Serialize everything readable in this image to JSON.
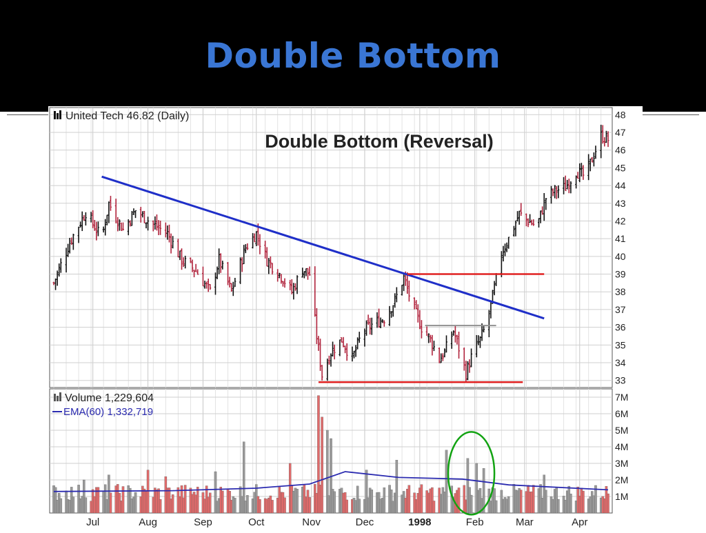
{
  "slide": {
    "title": "Double Bottom"
  },
  "colors": {
    "title": "#3a76d4",
    "up_candle": "#111111",
    "down_candle": "#b0233c",
    "trendline": "#1f2fc8",
    "support": "#e02020",
    "neckline": "#909090",
    "vol_up": "#9a9a9a",
    "vol_down": "#e06b6b",
    "ema": "#2b2bb0",
    "highlight": "#12a312"
  },
  "chart_data": [
    {
      "type": "candlestick",
      "header": "United Tech 46.82 (Daily)",
      "title": "Double Bottom (Reversal)",
      "ylim": [
        32.6,
        48.4
      ],
      "yticks": [
        "33",
        "34",
        "35",
        "36",
        "37",
        "38",
        "39",
        "40",
        "41",
        "42",
        "43",
        "44",
        "45",
        "46",
        "47",
        "48"
      ],
      "x_months": [
        {
          "label": "Jul",
          "x": "1997-07-01"
        },
        {
          "label": "Aug",
          "x": "1997-08-01"
        },
        {
          "label": "Sep",
          "x": "1997-09-01"
        },
        {
          "label": "Oct",
          "x": "1997-10-01"
        },
        {
          "label": "Nov",
          "x": "1997-11-01"
        },
        {
          "label": "Dec",
          "x": "1997-12-01"
        },
        {
          "label": "1998",
          "x": "1998-01-01"
        },
        {
          "label": "Feb",
          "x": "1998-02-01"
        },
        {
          "label": "Mar",
          "x": "1998-03-01"
        },
        {
          "label": "Apr",
          "x": "1998-04-01"
        }
      ],
      "xlim": [
        "1997-06-09",
        "1998-04-17"
      ],
      "price_path": [
        [
          "1997-06-09",
          38.5
        ],
        [
          "1997-06-18",
          40.8
        ],
        [
          "1997-06-27",
          42.5
        ],
        [
          "1997-07-06",
          41.0
        ],
        [
          "1997-07-10",
          43.0
        ],
        [
          "1997-07-18",
          41.5
        ],
        [
          "1997-07-25",
          42.6
        ],
        [
          "1997-08-04",
          41.8
        ],
        [
          "1997-08-12",
          41.3
        ],
        [
          "1997-08-20",
          39.8
        ],
        [
          "1997-08-28",
          39.2
        ],
        [
          "1997-09-05",
          38.0
        ],
        [
          "1997-09-10",
          39.8
        ],
        [
          "1997-09-17",
          38.0
        ],
        [
          "1997-09-25",
          40.5
        ],
        [
          "1997-10-01",
          41.3
        ],
        [
          "1997-10-07",
          39.8
        ],
        [
          "1997-10-15",
          38.9
        ],
        [
          "1997-10-21",
          38.0
        ],
        [
          "1997-10-27",
          39.3
        ],
        [
          "1997-10-31",
          39.0
        ],
        [
          "1997-11-04",
          35.5
        ],
        [
          "1997-11-07",
          33.3
        ],
        [
          "1997-11-12",
          34.6
        ],
        [
          "1997-11-18",
          35.3
        ],
        [
          "1997-11-24",
          34.2
        ],
        [
          "1997-11-30",
          35.8
        ],
        [
          "1997-12-06",
          36.2
        ],
        [
          "1997-12-12",
          36.5
        ],
        [
          "1997-12-18",
          37.5
        ],
        [
          "1997-12-23",
          38.8
        ],
        [
          "1997-12-28",
          37.2
        ],
        [
          "1998-01-02",
          36.0
        ],
        [
          "1998-01-07",
          35.3
        ],
        [
          "1998-01-12",
          34.2
        ],
        [
          "1998-01-15",
          34.6
        ],
        [
          "1998-01-20",
          35.8
        ],
        [
          "1998-01-24",
          34.5
        ],
        [
          "1998-01-27",
          33.4
        ],
        [
          "1998-01-31",
          34.6
        ],
        [
          "1998-02-04",
          35.3
        ],
        [
          "1998-02-08",
          36.3
        ],
        [
          "1998-02-12",
          38.2
        ],
        [
          "1998-02-16",
          40.2
        ],
        [
          "1998-02-21",
          41.2
        ],
        [
          "1998-02-26",
          42.4
        ],
        [
          "1998-03-03",
          42.0
        ],
        [
          "1998-03-08",
          41.7
        ],
        [
          "1998-03-13",
          43.3
        ],
        [
          "1998-03-18",
          43.7
        ],
        [
          "1998-03-24",
          43.9
        ],
        [
          "1998-03-30",
          44.8
        ],
        [
          "1998-04-04",
          44.5
        ],
        [
          "1998-04-08",
          45.5
        ],
        [
          "1998-04-13",
          46.8
        ],
        [
          "1998-04-17",
          46.6
        ]
      ],
      "annotations": [
        {
          "name": "trendline",
          "from": [
            "1997-07-06",
            44.5
          ],
          "to": [
            "1998-03-12",
            36.5
          ]
        },
        {
          "name": "resistance-line",
          "from": [
            "1997-12-25",
            39.0
          ],
          "to": [
            "1998-03-12",
            39.0
          ]
        },
        {
          "name": "neckline",
          "from": [
            "1998-01-04",
            36.1
          ],
          "to": [
            "1998-02-13",
            36.1
          ]
        },
        {
          "name": "support-line",
          "from": [
            "1997-11-05",
            32.9
          ],
          "to": [
            "1998-02-28",
            32.9
          ]
        }
      ]
    },
    {
      "type": "bar",
      "legend": [
        "Volume 1,229,604",
        "EMA(60) 1,332,719"
      ],
      "ylim": [
        0,
        7.5
      ],
      "yticks": [
        "1M",
        "2M",
        "3M",
        "4M",
        "5M",
        "6M",
        "7M"
      ],
      "volume_baseline": 1.3,
      "volume_spikes": [
        [
          "1997-06-26",
          2.0
        ],
        [
          "1997-07-10",
          2.3
        ],
        [
          "1997-08-01",
          2.6
        ],
        [
          "1997-08-11",
          2.2
        ],
        [
          "1997-09-08",
          2.5
        ],
        [
          "1997-09-24",
          4.3
        ],
        [
          "1997-10-05",
          5.3
        ],
        [
          "1997-10-20",
          3.0
        ],
        [
          "1997-11-05",
          7.1
        ],
        [
          "1997-11-07",
          5.8
        ],
        [
          "1997-11-10",
          5.0
        ],
        [
          "1997-11-12",
          4.5
        ],
        [
          "1997-12-02",
          2.6
        ],
        [
          "1997-12-19",
          3.2
        ],
        [
          "1998-01-16",
          3.8
        ],
        [
          "1998-01-28",
          3.3
        ],
        [
          "1998-02-02",
          3.0
        ],
        [
          "1998-02-06",
          2.7
        ],
        [
          "1998-03-12",
          2.3
        ],
        [
          "1998-04-05",
          2.2
        ],
        [
          "1998-04-12",
          2.4
        ]
      ],
      "ema_path": [
        [
          "1997-06-09",
          1.3
        ],
        [
          "1997-08-15",
          1.35
        ],
        [
          "1997-10-01",
          1.5
        ],
        [
          "1997-10-31",
          1.75
        ],
        [
          "1997-11-20",
          2.5
        ],
        [
          "1997-12-20",
          2.15
        ],
        [
          "1998-01-25",
          2.05
        ],
        [
          "1998-02-20",
          1.7
        ],
        [
          "1998-04-17",
          1.4
        ]
      ],
      "highlight": {
        "center": [
          "1998-01-30",
          2.4
        ],
        "rx_days": 13,
        "ry_value": 2.5
      }
    }
  ]
}
